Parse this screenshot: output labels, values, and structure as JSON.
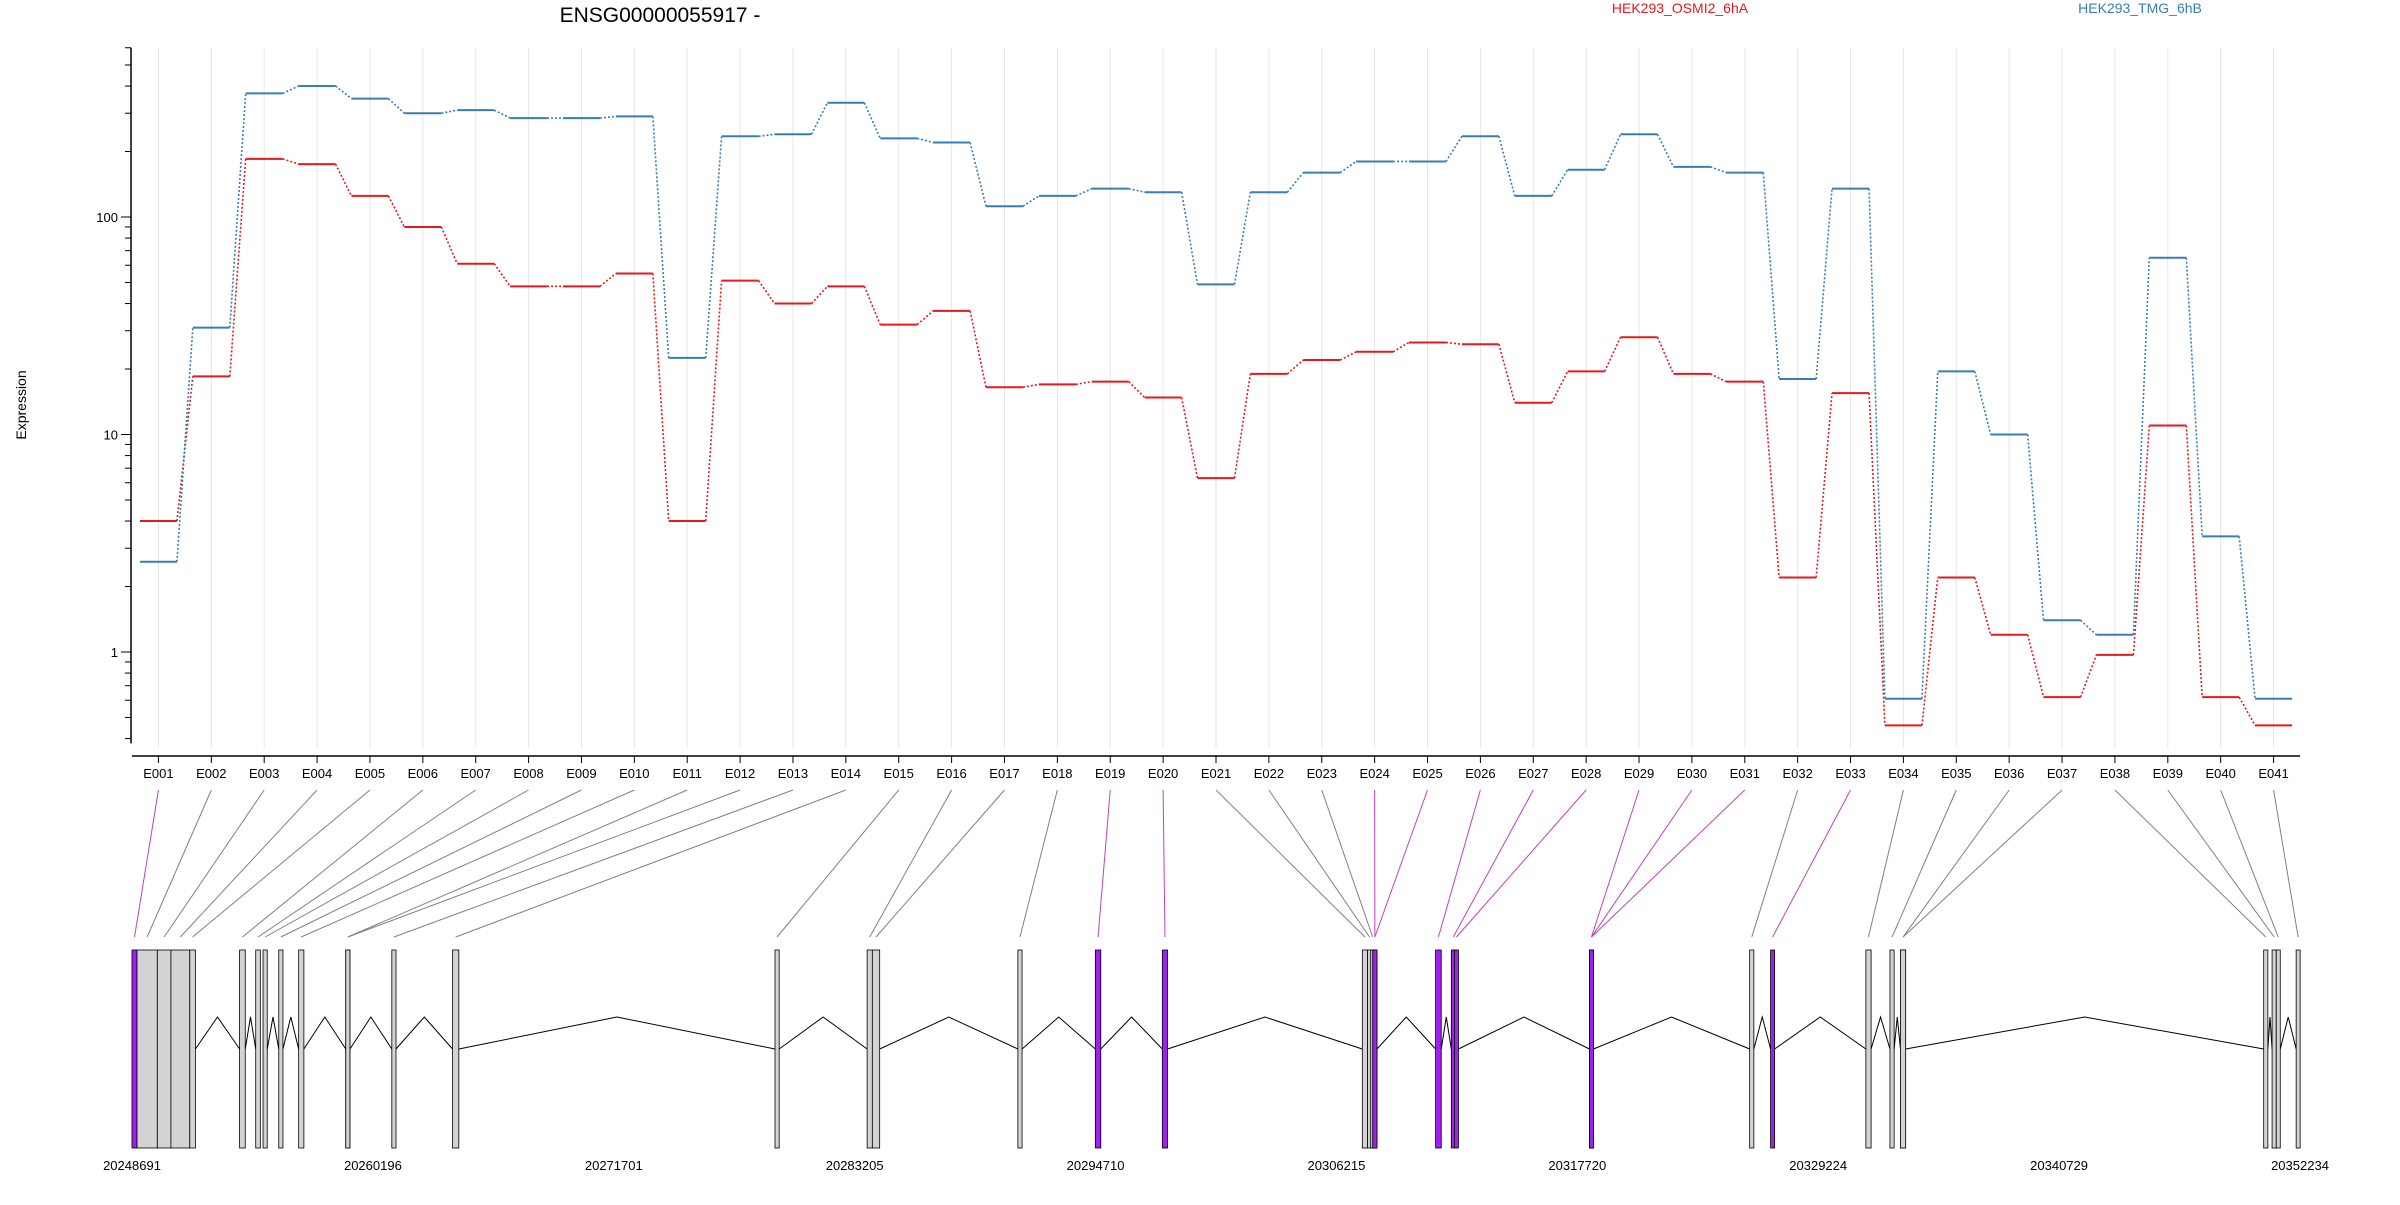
{
  "chart_data": {
    "type": "line",
    "title": "ENSG00000055917 -",
    "ylabel": "Expression",
    "yscale": "log",
    "ylim": [
      0.38,
      600
    ],
    "yticks": [
      1,
      10,
      100
    ],
    "ytick_labels": [
      "1",
      "10",
      "100"
    ],
    "legend_placement": "top",
    "categories": [
      "E001",
      "E002",
      "E003",
      "E004",
      "E005",
      "E006",
      "E007",
      "E008",
      "E009",
      "E010",
      "E011",
      "E012",
      "E013",
      "E014",
      "E015",
      "E016",
      "E017",
      "E018",
      "E019",
      "E020",
      "E021",
      "E022",
      "E023",
      "E024",
      "E025",
      "E026",
      "E027",
      "E028",
      "E029",
      "E030",
      "E031",
      "E032",
      "E033",
      "E034",
      "E035",
      "E036",
      "E037",
      "E038",
      "E039",
      "E040",
      "E041"
    ],
    "series": [
      {
        "name": "HEK293_OSMI2_6hA",
        "color": "#e41a1c",
        "values": [
          4.0,
          18.5,
          185,
          175,
          125,
          90,
          61,
          48,
          48,
          55,
          4.0,
          51,
          40,
          48,
          32,
          37,
          16.5,
          17,
          17.5,
          14.8,
          6.3,
          19,
          22,
          24,
          26.5,
          26,
          14,
          19.5,
          28,
          19,
          17.5,
          2.2,
          15.5,
          0.46,
          2.2,
          1.2,
          0.62,
          0.97,
          11,
          0.62,
          0.46
        ]
      },
      {
        "name": "HEK293_TMG_6hB",
        "color": "#377eb8",
        "values": [
          2.6,
          31,
          370,
          400,
          350,
          300,
          310,
          285,
          285,
          290,
          22.5,
          235,
          240,
          335,
          230,
          220,
          112,
          125,
          135,
          130,
          49,
          130,
          160,
          180,
          180,
          235,
          125,
          165,
          240,
          170,
          160,
          18,
          135,
          0.61,
          19.5,
          10,
          1.4,
          1.2,
          65,
          3.4,
          0.61
        ]
      }
    ],
    "gene_model": {
      "coordinate_ticks": [
        "20248691",
        "20260196",
        "20271701",
        "20283205",
        "20294710",
        "20306215",
        "20317720",
        "20329224",
        "20340729",
        "20352234"
      ],
      "tick_values": [
        20248691,
        20260196,
        20271701,
        20283205,
        20294710,
        20306215,
        20317720,
        20329224,
        20340729,
        20352234
      ],
      "exon_color_default": "#d3d3d3",
      "exon_color_highlight": "#a020f0",
      "connector_color_default": "#808080",
      "connector_color_highlight": "#c040c0",
      "exons": [
        {
          "id": "E001",
          "start": 20248691,
          "end": 20248930,
          "highlight": true
        },
        {
          "id": "E002",
          "start": 20248930,
          "end": 20249900,
          "highlight": false
        },
        {
          "id": "E003",
          "start": 20249900,
          "end": 20250550,
          "highlight": false
        },
        {
          "id": "E004",
          "start": 20250550,
          "end": 20251450,
          "highlight": false
        },
        {
          "id": "E005",
          "start": 20251450,
          "end": 20251720,
          "highlight": false
        },
        {
          "id": "E006",
          "start": 20253830,
          "end": 20254100,
          "highlight": false
        },
        {
          "id": "E007",
          "start": 20254600,
          "end": 20254820,
          "highlight": false
        },
        {
          "id": "E008",
          "start": 20254950,
          "end": 20255150,
          "highlight": false
        },
        {
          "id": "E009",
          "start": 20255700,
          "end": 20255900,
          "highlight": false
        },
        {
          "id": "E010",
          "start": 20256650,
          "end": 20256900,
          "highlight": false
        },
        {
          "id": "E011",
          "start": 20258900,
          "end": 20259100,
          "highlight": false
        },
        {
          "id": "E012",
          "start": 20258900,
          "end": 20259100,
          "highlight": false
        },
        {
          "id": "E013",
          "start": 20261100,
          "end": 20261300,
          "highlight": false
        },
        {
          "id": "E014",
          "start": 20264000,
          "end": 20264300,
          "highlight": false
        },
        {
          "id": "E015",
          "start": 20279400,
          "end": 20279600,
          "highlight": false
        },
        {
          "id": "E016",
          "start": 20283800,
          "end": 20284050,
          "highlight": false
        },
        {
          "id": "E017",
          "start": 20284050,
          "end": 20284400,
          "highlight": false
        },
        {
          "id": "E018",
          "start": 20291000,
          "end": 20291200,
          "highlight": false
        },
        {
          "id": "E019",
          "start": 20294700,
          "end": 20294960,
          "highlight": true
        },
        {
          "id": "E020",
          "start": 20297900,
          "end": 20298150,
          "highlight": true
        },
        {
          "id": "E021",
          "start": 20307450,
          "end": 20307700,
          "highlight": false
        },
        {
          "id": "E022",
          "start": 20307700,
          "end": 20307850,
          "highlight": false
        },
        {
          "id": "E023",
          "start": 20307850,
          "end": 20307950,
          "highlight": false
        },
        {
          "id": "E024",
          "start": 20307950,
          "end": 20308150,
          "highlight": true
        },
        {
          "id": "E025",
          "start": 20307950,
          "end": 20308150,
          "highlight": true
        },
        {
          "id": "E026",
          "start": 20310950,
          "end": 20311220,
          "highlight": true
        },
        {
          "id": "E027",
          "start": 20311700,
          "end": 20311850,
          "highlight": true
        },
        {
          "id": "E028",
          "start": 20311850,
          "end": 20311990,
          "highlight": true
        },
        {
          "id": "E029",
          "start": 20318300,
          "end": 20318450,
          "highlight": true
        },
        {
          "id": "E030",
          "start": 20318300,
          "end": 20318450,
          "highlight": true
        },
        {
          "id": "E031",
          "start": 20318300,
          "end": 20318450,
          "highlight": true
        },
        {
          "id": "E032",
          "start": 20325950,
          "end": 20326150,
          "highlight": false
        },
        {
          "id": "E033",
          "start": 20326950,
          "end": 20327100,
          "highlight": true
        },
        {
          "id": "E034",
          "start": 20331500,
          "end": 20331750,
          "highlight": false
        },
        {
          "id": "E035",
          "start": 20332650,
          "end": 20332850,
          "highlight": false
        },
        {
          "id": "E036",
          "start": 20333150,
          "end": 20333400,
          "highlight": false
        },
        {
          "id": "E037",
          "start": 20333150,
          "end": 20333400,
          "highlight": false
        },
        {
          "id": "E038",
          "start": 20350500,
          "end": 20350700,
          "highlight": false
        },
        {
          "id": "E039",
          "start": 20350900,
          "end": 20351100,
          "highlight": false
        },
        {
          "id": "E040",
          "start": 20351100,
          "end": 20351260,
          "highlight": false
        },
        {
          "id": "E041",
          "start": 20352050,
          "end": 20352234,
          "highlight": false
        }
      ]
    }
  }
}
